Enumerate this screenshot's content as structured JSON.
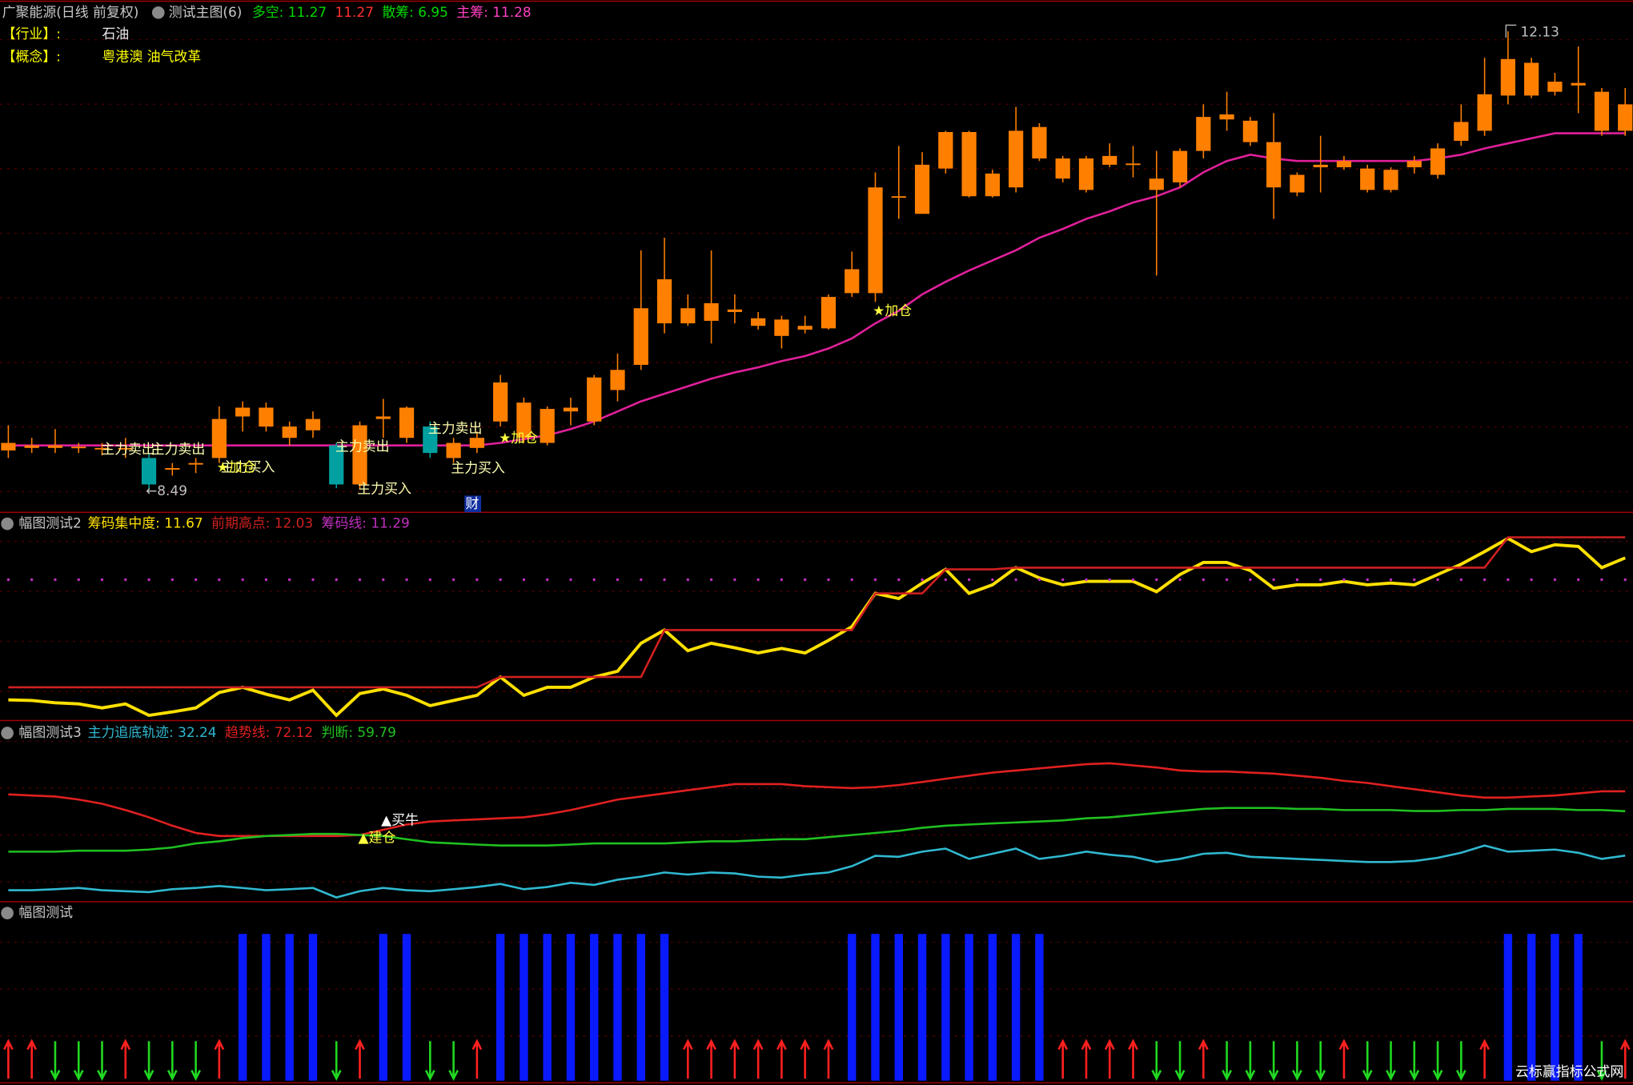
{
  "chart_data": [
    {
      "type": "candlestick",
      "title": "广聚能源(日线 前复权)",
      "subtitle": "测试主图(6)",
      "header": [
        {
          "label": "多空: 11.27",
          "color": "#00d800"
        },
        {
          "label": "11.27",
          "color": "#ff3030"
        },
        {
          "label": "散筹: 6.95",
          "color": "#00d800"
        },
        {
          "label": "主筹: 11.28",
          "color": "#ff40c0"
        }
      ],
      "info": [
        {
          "key": "【行业】:",
          "value": "石油"
        },
        {
          "key": "【概念】:",
          "value": "粤港澳 油气改革"
        }
      ],
      "ylim": [
        8.32,
        12.34
      ],
      "up_color": "#ff8000",
      "down_color": "#00a0a0",
      "ohlc": [
        [
          8.8,
          9.0,
          8.74,
          8.86
        ],
        [
          8.82,
          8.9,
          8.78,
          8.84
        ],
        [
          8.82,
          8.97,
          8.78,
          8.84
        ],
        [
          8.82,
          8.86,
          8.78,
          8.83
        ],
        [
          8.81,
          8.86,
          8.76,
          8.82
        ],
        [
          8.81,
          8.9,
          8.74,
          8.82
        ],
        [
          8.74,
          8.78,
          8.49,
          8.53
        ],
        [
          8.66,
          8.7,
          8.6,
          8.66
        ],
        [
          8.7,
          8.74,
          8.62,
          8.7
        ],
        [
          8.74,
          9.15,
          8.7,
          9.05
        ],
        [
          9.07,
          9.19,
          8.95,
          9.14
        ],
        [
          8.99,
          9.18,
          8.95,
          9.14
        ],
        [
          8.9,
          9.03,
          8.84,
          8.99
        ],
        [
          8.96,
          9.11,
          8.9,
          9.05
        ],
        [
          8.84,
          8.86,
          8.5,
          8.53
        ],
        [
          8.53,
          9.03,
          8.49,
          9.0
        ],
        [
          9.05,
          9.21,
          8.9,
          9.07
        ],
        [
          8.9,
          9.15,
          8.86,
          9.14
        ],
        [
          8.99,
          9.03,
          8.74,
          8.78
        ],
        [
          8.74,
          8.9,
          8.7,
          8.86
        ],
        [
          8.82,
          8.95,
          8.78,
          8.9
        ],
        [
          9.03,
          9.4,
          8.99,
          9.34
        ],
        [
          8.9,
          9.22,
          8.86,
          9.18
        ],
        [
          8.86,
          9.15,
          8.84,
          9.13
        ],
        [
          9.11,
          9.22,
          9.0,
          9.14
        ],
        [
          9.03,
          9.4,
          9.0,
          9.38
        ],
        [
          9.28,
          9.57,
          9.19,
          9.44
        ],
        [
          9.48,
          10.39,
          9.44,
          9.93
        ],
        [
          9.81,
          10.49,
          9.73,
          10.16
        ],
        [
          9.81,
          10.04,
          9.79,
          9.93
        ],
        [
          9.83,
          10.39,
          9.65,
          9.97
        ],
        [
          9.9,
          10.04,
          9.81,
          9.92
        ],
        [
          9.79,
          9.9,
          9.76,
          9.85
        ],
        [
          9.71,
          9.87,
          9.61,
          9.84
        ],
        [
          9.76,
          9.87,
          9.73,
          9.79
        ],
        [
          9.77,
          10.04,
          9.76,
          10.02
        ],
        [
          10.05,
          10.38,
          10.02,
          10.24
        ],
        [
          10.05,
          11.01,
          9.98,
          10.89
        ],
        [
          10.81,
          11.22,
          10.64,
          10.82
        ],
        [
          10.68,
          11.17,
          10.68,
          11.07
        ],
        [
          11.04,
          11.34,
          11.0,
          11.33
        ],
        [
          10.82,
          11.34,
          10.81,
          11.33
        ],
        [
          10.82,
          11.03,
          10.81,
          11.0
        ],
        [
          10.89,
          11.53,
          10.85,
          11.34
        ],
        [
          11.12,
          11.4,
          11.1,
          11.37
        ],
        [
          10.96,
          11.14,
          10.93,
          11.12
        ],
        [
          10.87,
          11.14,
          10.85,
          11.12
        ],
        [
          11.07,
          11.24,
          11.05,
          11.14
        ],
        [
          11.07,
          11.22,
          10.97,
          11.08
        ],
        [
          10.87,
          11.18,
          10.19,
          10.96
        ],
        [
          10.93,
          11.2,
          10.89,
          11.18
        ],
        [
          11.18,
          11.55,
          11.12,
          11.45
        ],
        [
          11.43,
          11.65,
          11.34,
          11.47
        ],
        [
          11.25,
          11.45,
          11.22,
          11.42
        ],
        [
          10.89,
          11.48,
          10.64,
          11.25
        ],
        [
          10.85,
          11.01,
          10.82,
          10.99
        ],
        [
          11.05,
          11.3,
          10.85,
          11.07
        ],
        [
          11.05,
          11.14,
          11.03,
          11.1
        ],
        [
          10.87,
          11.07,
          10.85,
          11.04
        ],
        [
          10.87,
          11.05,
          10.85,
          11.03
        ],
        [
          11.05,
          11.14,
          11.0,
          11.1
        ],
        [
          10.99,
          11.24,
          10.96,
          11.2
        ],
        [
          11.26,
          11.55,
          11.22,
          11.41
        ],
        [
          11.34,
          11.92,
          11.3,
          11.63
        ],
        [
          11.62,
          12.13,
          11.55,
          11.91
        ],
        [
          11.62,
          11.92,
          11.6,
          11.88
        ],
        [
          11.65,
          11.8,
          11.62,
          11.73
        ],
        [
          11.7,
          12.01,
          11.48,
          11.72
        ],
        [
          11.34,
          11.68,
          11.3,
          11.65
        ],
        [
          11.34,
          11.68,
          11.3,
          11.55
        ]
      ],
      "series": [
        {
          "color": "#e0209a",
          "values": [
            8.84,
            8.84,
            8.84,
            8.84,
            8.84,
            8.84,
            8.84,
            8.84,
            8.84,
            8.84,
            8.84,
            8.84,
            8.84,
            8.84,
            8.84,
            8.84,
            8.84,
            8.84,
            8.84,
            8.84,
            8.84,
            8.86,
            8.89,
            8.92,
            8.97,
            9.03,
            9.11,
            9.19,
            9.25,
            9.31,
            9.37,
            9.42,
            9.46,
            9.51,
            9.55,
            9.61,
            9.69,
            9.81,
            9.91,
            10.04,
            10.14,
            10.23,
            10.31,
            10.39,
            10.49,
            10.56,
            10.64,
            10.7,
            10.77,
            10.82,
            10.89,
            11.01,
            11.1,
            11.15,
            11.12,
            11.1,
            11.1,
            11.1,
            11.1,
            11.1,
            11.1,
            11.12,
            11.15,
            11.2,
            11.24,
            11.28,
            11.32,
            11.32,
            11.32,
            11.32
          ]
        }
      ],
      "annotations": [
        "主力卖出",
        "主力卖出",
        "主力卖出",
        "主力卖出",
        "主力买入",
        "主力买入",
        "主力买入",
        "★加仓",
        "★加仓",
        "★加仓"
      ],
      "high_label": "12.13",
      "low_label": "←8.49",
      "badge": "财"
    },
    {
      "type": "line",
      "title": "幅图测试2",
      "ylim": [
        8.83,
        12.23
      ],
      "series": [
        {
          "label": "筹码集中度: 11.67",
          "color": "#ffe000",
          "values": [
            9.19,
            9.18,
            9.14,
            9.12,
            9.05,
            9.12,
            8.92,
            8.98,
            9.05,
            9.32,
            9.41,
            9.29,
            9.19,
            9.36,
            8.92,
            9.3,
            9.38,
            9.27,
            9.09,
            9.18,
            9.27,
            9.59,
            9.27,
            9.41,
            9.41,
            9.59,
            9.69,
            10.18,
            10.41,
            10.05,
            10.18,
            10.1,
            10.01,
            10.09,
            10.01,
            10.23,
            10.47,
            11.05,
            10.96,
            11.23,
            11.47,
            11.05,
            11.2,
            11.5,
            11.32,
            11.2,
            11.26,
            11.26,
            11.26,
            11.08,
            11.38,
            11.59,
            11.59,
            11.45,
            11.14,
            11.2,
            11.2,
            11.26,
            11.2,
            11.23,
            11.2,
            11.38,
            11.56,
            11.78,
            12.01,
            11.78,
            11.9,
            11.87,
            11.5,
            11.67
          ]
        },
        {
          "label": "前期高点: 12.03",
          "color": "#d02020",
          "values": [
            9.41,
            9.41,
            9.41,
            9.41,
            9.41,
            9.41,
            9.41,
            9.41,
            9.41,
            9.41,
            9.41,
            9.41,
            9.41,
            9.41,
            9.41,
            9.41,
            9.41,
            9.41,
            9.41,
            9.41,
            9.41,
            9.59,
            9.59,
            9.59,
            9.59,
            9.59,
            9.59,
            9.59,
            10.41,
            10.41,
            10.41,
            10.41,
            10.41,
            10.41,
            10.41,
            10.41,
            10.41,
            11.05,
            11.05,
            11.05,
            11.47,
            11.47,
            11.47,
            11.5,
            11.5,
            11.5,
            11.5,
            11.5,
            11.5,
            11.5,
            11.5,
            11.5,
            11.5,
            11.5,
            11.5,
            11.5,
            11.5,
            11.5,
            11.5,
            11.5,
            11.5,
            11.5,
            11.5,
            11.5,
            12.03,
            12.03,
            12.03,
            12.03,
            12.03,
            12.03
          ]
        },
        {
          "label": "筹码线: 11.29",
          "color": "#c030c0",
          "style": "dotted",
          "values": [
            11.29,
            11.29,
            11.29,
            11.29,
            11.29,
            11.29,
            11.29,
            11.29,
            11.29,
            11.29,
            11.29,
            11.29,
            11.29,
            11.29,
            11.29,
            11.29,
            11.29,
            11.29,
            11.29,
            11.29,
            11.29,
            11.29,
            11.29,
            11.29,
            11.29,
            11.29,
            11.29,
            11.29,
            11.29,
            11.29,
            11.29,
            11.29,
            11.29,
            11.29,
            11.29,
            11.29,
            11.29,
            11.29,
            11.29,
            11.29,
            11.29,
            11.29,
            11.29,
            11.29,
            11.29,
            11.29,
            11.29,
            11.29,
            11.29,
            11.29,
            11.29,
            11.29,
            11.29,
            11.29,
            11.29,
            11.29,
            11.29,
            11.29,
            11.29,
            11.29,
            11.29,
            11.29,
            11.29,
            11.29,
            11.29,
            11.29,
            11.29,
            11.29,
            11.29,
            11.29
          ]
        }
      ]
    },
    {
      "type": "line",
      "title": "幅图测试3",
      "ylim": [
        5,
        110
      ],
      "series": [
        {
          "label": "主力追底轨迹: 32.24",
          "color": "#30b8d0",
          "values": [
            10.8,
            10.8,
            11.4,
            12.2,
            10.8,
            10.2,
            9.6,
            11.4,
            12.2,
            13.4,
            12.2,
            10.8,
            11.4,
            12.2,
            6.3,
            10.2,
            12.2,
            10.8,
            10.2,
            11.4,
            12.8,
            14.7,
            11.4,
            12.8,
            15.4,
            14.1,
            17.3,
            19.2,
            21.8,
            20.5,
            21.8,
            21.2,
            19.2,
            18.6,
            20.5,
            21.8,
            25.7,
            32.1,
            31.5,
            34.7,
            36.6,
            30.2,
            33.4,
            36.6,
            30.2,
            32.1,
            34.7,
            32.8,
            31.5,
            28.3,
            30.2,
            33.4,
            34.0,
            31.5,
            30.9,
            30.2,
            29.6,
            28.9,
            28.3,
            28.3,
            28.9,
            30.9,
            34.0,
            38.5,
            34.7,
            35.3,
            36.0,
            34.0,
            30.2,
            32.24
          ]
        },
        {
          "label": "趋势线: 72.12",
          "color": "#e02020",
          "values": [
            70.2,
            69.5,
            68.9,
            67.0,
            64.4,
            60.5,
            56.0,
            50.8,
            46.3,
            44.4,
            44.4,
            44.4,
            44.4,
            44.4,
            44.4,
            45.0,
            48.3,
            51.5,
            53.4,
            54.1,
            54.7,
            55.4,
            56.0,
            57.9,
            60.5,
            63.7,
            67.0,
            68.9,
            70.8,
            72.8,
            74.7,
            76.6,
            76.6,
            76.6,
            75.3,
            74.7,
            74.1,
            74.7,
            76.0,
            77.9,
            79.9,
            81.8,
            83.7,
            85.0,
            86.3,
            87.6,
            88.9,
            89.5,
            88.2,
            86.9,
            85.0,
            84.4,
            84.4,
            83.7,
            83.1,
            81.8,
            80.5,
            78.6,
            77.3,
            75.3,
            73.4,
            71.5,
            69.5,
            68.2,
            68.2,
            68.9,
            69.5,
            70.8,
            72.1,
            72.12
          ]
        },
        {
          "label": "判断: 59.79",
          "color": "#20c020",
          "values": [
            34.7,
            34.7,
            34.7,
            35.3,
            35.3,
            35.3,
            36.0,
            37.3,
            39.8,
            41.1,
            43.1,
            44.4,
            45.0,
            45.7,
            45.7,
            45.0,
            44.4,
            42.4,
            40.5,
            39.8,
            39.1,
            38.5,
            38.5,
            38.5,
            39.1,
            39.8,
            39.8,
            39.8,
            39.8,
            40.5,
            41.1,
            41.1,
            41.8,
            42.4,
            42.4,
            43.7,
            45.0,
            46.3,
            47.6,
            49.5,
            50.8,
            51.5,
            52.2,
            52.8,
            53.4,
            54.1,
            55.4,
            56.0,
            57.3,
            58.6,
            59.9,
            61.2,
            61.8,
            61.8,
            61.8,
            61.2,
            61.2,
            60.5,
            60.5,
            60.5,
            59.9,
            59.9,
            60.5,
            60.5,
            61.2,
            61.2,
            61.2,
            60.5,
            60.5,
            59.79
          ]
        }
      ],
      "annotations": [
        "▲买牛",
        "▲建仓"
      ]
    },
    {
      "type": "signal",
      "title": "幅图测试",
      "bar_color": "#0a1aff",
      "up_color": "#ff2020",
      "down_color": "#20d820",
      "values": [
        0,
        0,
        0,
        0,
        0,
        0,
        0,
        0,
        0,
        0,
        1,
        1,
        1,
        1,
        0,
        0,
        1,
        1,
        0,
        0,
        0,
        1,
        1,
        1,
        1,
        1,
        1,
        1,
        1,
        0,
        0,
        0,
        0,
        0,
        0,
        0,
        1,
        1,
        1,
        1,
        1,
        1,
        1,
        1,
        1,
        0,
        0,
        0,
        0,
        0,
        0,
        0,
        0,
        0,
        0,
        0,
        0,
        0,
        0,
        0,
        0,
        0,
        0,
        0,
        1,
        1,
        1,
        1,
        0,
        0
      ],
      "arrows": [
        1,
        1,
        -1,
        -1,
        -1,
        1,
        -1,
        -1,
        -1,
        1,
        0,
        0,
        0,
        0,
        -1,
        1,
        0,
        0,
        -1,
        -1,
        1,
        0,
        0,
        0,
        0,
        0,
        0,
        0,
        0,
        1,
        1,
        1,
        1,
        1,
        1,
        1,
        0,
        0,
        0,
        0,
        0,
        0,
        0,
        0,
        0,
        1,
        1,
        1,
        1,
        -1,
        -1,
        1,
        -1,
        -1,
        -1,
        -1,
        -1,
        1,
        -1,
        -1,
        -1,
        -1,
        -1,
        1,
        0,
        0,
        0,
        0,
        -1,
        1
      ]
    }
  ],
  "watermark": "云标赢指标公式网"
}
